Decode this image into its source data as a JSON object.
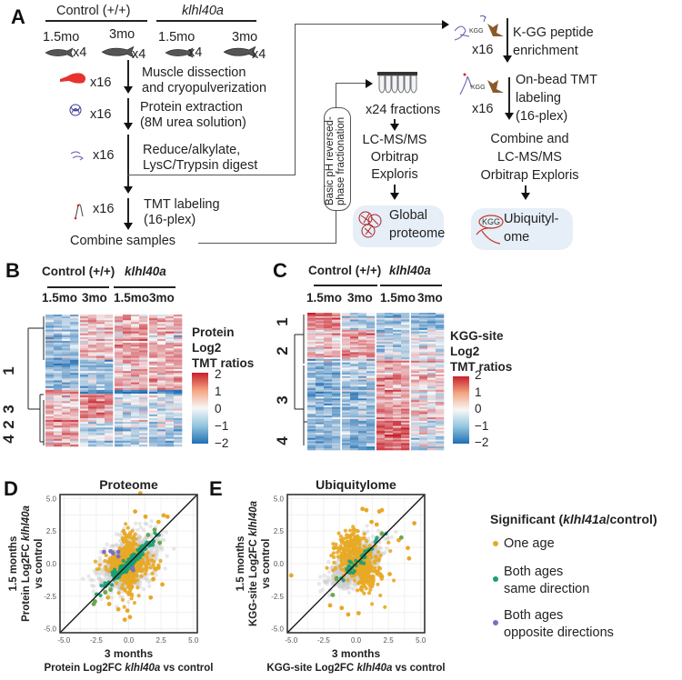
{
  "panels": {
    "A": {
      "letter": "A",
      "groups": [
        "Control (+/+)",
        "klhl40a"
      ],
      "ages": [
        "1.5mo",
        "3mo",
        "1.5mo",
        "3mo"
      ],
      "fish_count": "x4",
      "steps": [
        {
          "icon": "muscle-icon",
          "count": "x16",
          "lines": [
            "Muscle dissection",
            "and cryopulverization"
          ]
        },
        {
          "icon": "protein-icon",
          "count": "x16",
          "lines": [
            "Protein extraction",
            "(8M urea solution)"
          ]
        },
        {
          "icon": "peptide-icon",
          "count": "x16",
          "lines": [
            "Reduce/alkylate,",
            "LysC/Trypsin digest"
          ]
        },
        {
          "icon": "tmt-peptide-icon",
          "count": "x16",
          "lines": [
            "TMT labeling",
            "(16-plex)"
          ]
        }
      ],
      "combine": "Combine samples",
      "fractionation": [
        "Basic pH reversed-",
        "phase fractionation"
      ],
      "fractions": "x24 fractions",
      "lcms_global": [
        "LC-MS/MS",
        "Orbitrap",
        "Exploris"
      ],
      "global_result": [
        "Global",
        "proteome"
      ],
      "kgg_steps": [
        {
          "count": "x16",
          "lines": [
            "K-GG peptide",
            "enrichment"
          ]
        },
        {
          "count": "x16",
          "lines": [
            "On-bead TMT",
            "labeling",
            "(16-plex)"
          ]
        }
      ],
      "kgg_label": "KGG",
      "lcms_kgg": [
        "Combine and",
        "LC-MS/MS",
        "Orbitrap Exploris"
      ],
      "ubiq_result": [
        "Ubiquityl-",
        "ome"
      ]
    },
    "B": {
      "letter": "B",
      "groups": [
        "Control (+/+)",
        "klhl40a"
      ],
      "ages": [
        "1.5mo",
        "3mo",
        "1.5mo",
        "3mo"
      ],
      "clusters": [
        "1",
        "2",
        "3",
        "4"
      ],
      "legend_title": [
        "Protein",
        "Log2",
        "TMT ratios"
      ],
      "legend_ticks": [
        "2",
        "1",
        "0",
        "−1",
        "−2"
      ]
    },
    "C": {
      "letter": "C",
      "groups": [
        "Control (+/+)",
        "klhl40a"
      ],
      "ages": [
        "1.5mo",
        "3mo",
        "1.5mo",
        "3mo"
      ],
      "clusters": [
        "1",
        "2",
        "3",
        "4"
      ],
      "legend_title": [
        "KGG-site",
        "Log2",
        "TMT ratios"
      ],
      "legend_ticks": [
        "2",
        "1",
        "0",
        "−1",
        "−2"
      ]
    },
    "D": {
      "letter": "D"
    },
    "E": {
      "letter": "E"
    }
  },
  "legend": {
    "title_pre": "Significant (",
    "title_gene": "klhl41a",
    "title_post": "/control)",
    "items": [
      {
        "label": [
          "One age"
        ],
        "color": "#e8a825"
      },
      {
        "label": [
          "Both ages",
          "same direction"
        ],
        "color": "#1a9e74"
      },
      {
        "label": [
          "Both ages",
          "opposite directions"
        ],
        "color": "#7b6fc4"
      }
    ]
  },
  "colors": {
    "heat_high": "#c8202a",
    "heat_mid": "#f7f7f7",
    "heat_low": "#1f6fb4",
    "not_significant": "#cccccc",
    "one_age": "#e8a825",
    "same_dir": "#1a9e74",
    "same_dir_light": "#6aa84f",
    "opposite_dir": "#7b6fc4"
  },
  "chart_data": [
    {
      "type": "scatter",
      "title": "Proteome",
      "xlabel_line1": "3 months",
      "xlabel_line2_pre": "Protein Log2FC ",
      "xlabel_line2_gene": "klhl40a",
      "xlabel_line2_post": " vs control",
      "ylabel_line1": "1.5 months",
      "ylabel_line2_pre": "Protein Log2FC ",
      "ylabel_line2_gene": "klhl40a",
      "ylabel_line3": "vs control",
      "xlim": [
        -5.3,
        5.3
      ],
      "ylim": [
        -5.3,
        5.3
      ],
      "xticks": [
        "-5.0",
        "-2.5",
        "0.0",
        "2.5",
        "5.0"
      ],
      "yticks": [
        "5.0",
        "2.5",
        "0.0",
        "-2.5",
        "-5.0"
      ],
      "tick_values": [
        -5,
        -2.5,
        0,
        2.5,
        5
      ],
      "diagonal": "y = x",
      "grid": true,
      "series": [
        {
          "name": "Not significant",
          "spread": 1.1,
          "n": 900,
          "corr": 0.4
        },
        {
          "name": "One age",
          "spread": 0.8,
          "n": 700,
          "corr": 0.5
        },
        {
          "name": "Both ages same direction",
          "spread": 0.9,
          "n": 160,
          "corr": 0.97
        },
        {
          "name": "Both ages opposite directions",
          "points": [
            [
              -1.9,
              0.9
            ],
            [
              -1.4,
              0.95
            ],
            [
              -1.2,
              0.8
            ],
            [
              -0.8,
              0.9
            ],
            [
              -0.8,
              0.55
            ],
            [
              0.3,
              -0.35
            ],
            [
              0.35,
              -0.5
            ]
          ]
        }
      ],
      "outliers_one_age": [
        [
          0.9,
          5.4
        ],
        [
          0.5,
          4.0
        ],
        [
          1.3,
          3.6
        ],
        [
          2.7,
          3.7
        ],
        [
          3.0,
          3.6
        ],
        [
          2.3,
          3.2
        ],
        [
          -0.4,
          2.5
        ],
        [
          1.7,
          -2.6
        ],
        [
          -0.3,
          -4.3
        ],
        [
          0.1,
          -4.1
        ],
        [
          -0.1,
          -3.6
        ],
        [
          -0.8,
          -3.5
        ],
        [
          -1.5,
          -3.1
        ],
        [
          -1.6,
          -2.6
        ],
        [
          2.3,
          -0.3
        ],
        [
          1.9,
          -1.2
        ],
        [
          2.6,
          -1.6
        ]
      ],
      "outliers_same_dir": [
        [
          -2.7,
          -3.1
        ],
        [
          -2.6,
          -2.9
        ],
        [
          -1.8,
          -2.2
        ],
        [
          -1.4,
          -2.0
        ],
        [
          2.4,
          1.6
        ],
        [
          2.0,
          2.6
        ],
        [
          1.5,
          2.2
        ]
      ]
    },
    {
      "type": "scatter",
      "title": "Ubiquitylome",
      "xlabel_line1": "3 months",
      "xlabel_line2_pre": "KGG-site Log2FC ",
      "xlabel_line2_gene": "klhl40a",
      "xlabel_line2_post": " vs control",
      "ylabel_line1": "1.5 months",
      "ylabel_line2_pre": "KGG-site Log2FC ",
      "ylabel_line2_gene": "klhl40a",
      "ylabel_line3": "vs control",
      "xlim": [
        -5.3,
        5.3
      ],
      "ylim": [
        -5.3,
        5.3
      ],
      "xticks": [
        "-5.0",
        "-2.5",
        "0.0",
        "2.5",
        "5.0"
      ],
      "yticks": [
        "5.0",
        "2.5",
        "0.0",
        "-2.5",
        "-5.0"
      ],
      "tick_values": [
        -5,
        -2.5,
        0,
        2.5,
        5
      ],
      "diagonal": "y = x",
      "grid": true,
      "series": [
        {
          "name": "Not significant",
          "spread": 0.9,
          "n": 900,
          "corr": 0.6
        },
        {
          "name": "One age",
          "spread": 1.0,
          "n": 450,
          "corr": 0.0
        },
        {
          "name": "Both ages same direction",
          "spread": 0.9,
          "n": 40,
          "corr": 0.95
        }
      ],
      "outliers_one_age": [
        [
          0.5,
          4.2
        ],
        [
          0.8,
          4.1
        ],
        [
          1.8,
          4.0
        ],
        [
          2.0,
          4.1
        ],
        [
          1.2,
          3.2
        ],
        [
          1.6,
          3.0
        ],
        [
          4.5,
          3.1
        ],
        [
          4.0,
          1.2
        ],
        [
          4.1,
          0.4
        ],
        [
          3.3,
          1.8
        ],
        [
          -5.0,
          -0.9
        ],
        [
          -2.0,
          -3.2
        ],
        [
          -1.1,
          -3.4
        ],
        [
          -0.6,
          -3.9
        ],
        [
          0.2,
          -3.8
        ],
        [
          2.0,
          -1.0
        ],
        [
          1.3,
          -1.0
        ],
        [
          2.6,
          -0.8
        ],
        [
          -1.7,
          1.2
        ]
      ],
      "outliers_same_dir": [
        [
          3.5,
          2.0
        ],
        [
          2.0,
          2.3
        ],
        [
          -1.8,
          -2.4
        ],
        [
          -1.5,
          -1.2
        ]
      ]
    }
  ]
}
